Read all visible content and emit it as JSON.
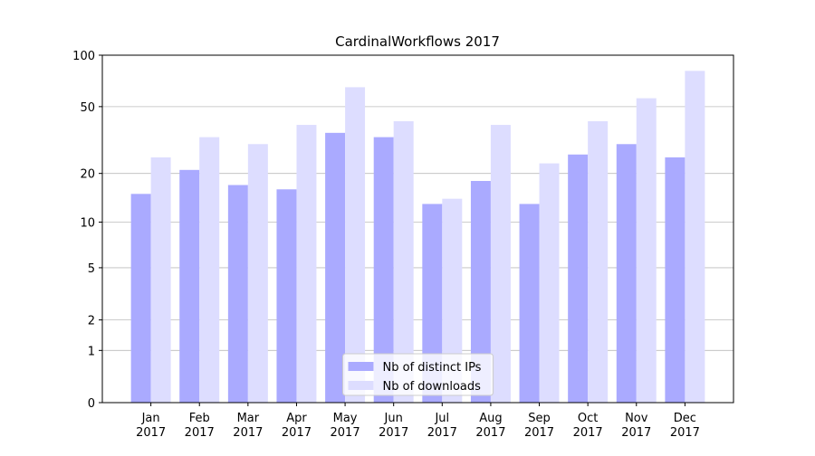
{
  "chart_data": {
    "type": "bar",
    "title": "CardinalWorkflows 2017",
    "categories": [
      "Jan\n2017",
      "Feb\n2017",
      "Mar\n2017",
      "Apr\n2017",
      "May\n2017",
      "Jun\n2017",
      "Jul\n2017",
      "Aug\n2017",
      "Sep\n2017",
      "Oct\n2017",
      "Nov\n2017",
      "Dec\n2017"
    ],
    "series": [
      {
        "name": "Nb of distinct IPs",
        "color": "#aaaaff",
        "values": [
          15,
          21,
          17,
          16,
          35,
          33,
          13,
          18,
          13,
          26,
          30,
          25
        ]
      },
      {
        "name": "Nb of downloads",
        "color": "#ddddff",
        "values": [
          25,
          33,
          30,
          39,
          65,
          41,
          14,
          39,
          23,
          41,
          56,
          81
        ]
      }
    ],
    "yscale": "log1p",
    "ylim": [
      0,
      100
    ],
    "yticks": [
      0,
      1,
      2,
      5,
      10,
      20,
      50,
      100
    ],
    "grid": true,
    "legend": "lower center"
  }
}
